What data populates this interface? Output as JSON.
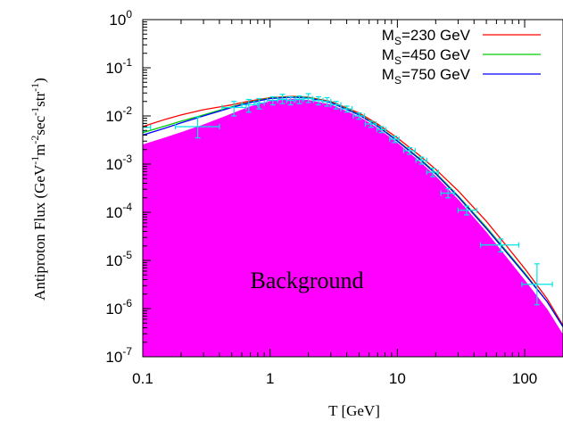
{
  "chart_data": {
    "type": "line",
    "xlabel": "T [GeV]",
    "ylabel": "Antiproton Flux (GeV-1m-2sec-1str-1)",
    "x_scale": "log",
    "y_scale": "log",
    "xlim": [
      0.1,
      200
    ],
    "ylim": [
      1e-07,
      1
    ],
    "grid": false,
    "legend_position": "top-right",
    "x_ticks": [
      {
        "value": 0.1,
        "label": "0.1"
      },
      {
        "value": 1,
        "label": "1"
      },
      {
        "value": 10,
        "label": "10"
      },
      {
        "value": 100,
        "label": "100"
      }
    ],
    "y_ticks": [
      {
        "value": 1,
        "base": "10",
        "exp": "0"
      },
      {
        "value": 0.1,
        "base": "10",
        "exp": "-1"
      },
      {
        "value": 0.01,
        "base": "10",
        "exp": "-2"
      },
      {
        "value": 0.001,
        "base": "10",
        "exp": "-3"
      },
      {
        "value": 0.0001,
        "base": "10",
        "exp": "-4"
      },
      {
        "value": 1e-05,
        "base": "10",
        "exp": "-5"
      },
      {
        "value": 1e-06,
        "base": "10",
        "exp": "-6"
      },
      {
        "value": 1e-07,
        "base": "10",
        "exp": "-7"
      }
    ],
    "background": {
      "label": "Background",
      "color": "#ff00ff",
      "x": [
        0.1,
        0.15,
        0.2,
        0.3,
        0.5,
        0.7,
        1,
        1.5,
        2,
        3,
        5,
        7,
        10,
        15,
        20,
        30,
        50,
        70,
        100,
        150,
        200
      ],
      "y": [
        0.0025,
        0.0035,
        0.0045,
        0.0065,
        0.011,
        0.0155,
        0.02,
        0.022,
        0.021,
        0.017,
        0.0095,
        0.0055,
        0.0027,
        0.0011,
        0.00055,
        0.00018,
        3.8e-05,
        1.25e-05,
        3.8e-06,
        9.5e-07,
        2.8e-07
      ]
    },
    "series": [
      {
        "name": "230 GeV",
        "color": "#ff0000",
        "x": [
          0.1,
          0.15,
          0.2,
          0.3,
          0.5,
          0.7,
          1,
          1.5,
          2,
          3,
          5,
          7,
          10,
          15,
          20,
          30,
          50,
          70,
          100,
          150,
          200
        ],
        "y": [
          0.006,
          0.0085,
          0.0105,
          0.0135,
          0.017,
          0.0205,
          0.024,
          0.0255,
          0.0245,
          0.02,
          0.0115,
          0.0068,
          0.0035,
          0.0015,
          0.00078,
          0.00028,
          6.5e-05,
          2.2e-05,
          6.8e-06,
          1.6e-06,
          4.5e-07
        ]
      },
      {
        "name": "450 GeV",
        "color": "#00cc00",
        "x": [
          0.1,
          0.15,
          0.2,
          0.3,
          0.5,
          0.7,
          1,
          1.5,
          2,
          3,
          5,
          7,
          10,
          15,
          20,
          30,
          50,
          70,
          100,
          150,
          200
        ],
        "y": [
          0.0045,
          0.0062,
          0.0078,
          0.0105,
          0.0155,
          0.0195,
          0.0235,
          0.025,
          0.024,
          0.0193,
          0.0108,
          0.0063,
          0.0031,
          0.0013,
          0.00066,
          0.00022,
          4.9e-05,
          1.7e-05,
          5.5e-06,
          1.4e-06,
          4.2e-07
        ]
      },
      {
        "name": "750 GeV",
        "color": "#0000ff",
        "x": [
          0.1,
          0.15,
          0.2,
          0.3,
          0.5,
          0.7,
          1,
          1.5,
          2,
          3,
          5,
          7,
          10,
          15,
          20,
          30,
          50,
          70,
          100,
          150,
          200
        ],
        "y": [
          0.004,
          0.0056,
          0.0072,
          0.01,
          0.015,
          0.019,
          0.023,
          0.0245,
          0.0235,
          0.019,
          0.0105,
          0.0061,
          0.003,
          0.00125,
          0.00063,
          0.00021,
          4.6e-05,
          1.6e-05,
          5.2e-06,
          1.4e-06,
          4.2e-07
        ]
      }
    ],
    "data_points": {
      "color": "#00e5e5",
      "points": [
        {
          "x": 0.1,
          "y": 0.0058,
          "xerr": [
            0.098,
            0.115
          ],
          "yerr": [
            0.0048,
            0.007
          ]
        },
        {
          "x": 0.27,
          "y": 0.006,
          "xerr": [
            0.18,
            0.4
          ],
          "yerr": [
            0.0035,
            0.0095
          ]
        },
        {
          "x": 0.52,
          "y": 0.015,
          "xerr": [
            0.42,
            0.65
          ],
          "yerr": [
            0.01,
            0.02
          ]
        },
        {
          "x": 0.68,
          "y": 0.017,
          "xerr": [
            0.6,
            0.8
          ],
          "yerr": [
            0.012,
            0.022
          ]
        },
        {
          "x": 0.82,
          "y": 0.0185,
          "xerr": [
            0.75,
            0.9
          ],
          "yerr": [
            0.014,
            0.023
          ]
        },
        {
          "x": 1.05,
          "y": 0.021,
          "xerr": [
            0.95,
            1.15
          ],
          "yerr": [
            0.017,
            0.025
          ]
        },
        {
          "x": 1.25,
          "y": 0.022,
          "xerr": [
            1.15,
            1.35
          ],
          "yerr": [
            0.018,
            0.028
          ]
        },
        {
          "x": 1.45,
          "y": 0.021,
          "xerr": [
            1.35,
            1.55
          ],
          "yerr": [
            0.017,
            0.025
          ]
        },
        {
          "x": 1.7,
          "y": 0.022,
          "xerr": [
            1.6,
            1.8
          ],
          "yerr": [
            0.018,
            0.026
          ]
        },
        {
          "x": 2.0,
          "y": 0.023,
          "xerr": [
            1.85,
            2.15
          ],
          "yerr": [
            0.019,
            0.029
          ]
        },
        {
          "x": 2.4,
          "y": 0.021,
          "xerr": [
            2.2,
            2.6
          ],
          "yerr": [
            0.017,
            0.025
          ]
        },
        {
          "x": 2.8,
          "y": 0.02,
          "xerr": [
            2.6,
            3.0
          ],
          "yerr": [
            0.016,
            0.024
          ]
        },
        {
          "x": 3.3,
          "y": 0.017,
          "xerr": [
            3.0,
            3.6
          ],
          "yerr": [
            0.014,
            0.02
          ]
        },
        {
          "x": 4.0,
          "y": 0.014,
          "xerr": [
            3.6,
            4.4
          ],
          "yerr": [
            0.012,
            0.016
          ]
        },
        {
          "x": 5.0,
          "y": 0.01,
          "xerr": [
            4.5,
            5.5
          ],
          "yerr": [
            0.0085,
            0.0115
          ]
        },
        {
          "x": 6.2,
          "y": 0.0068,
          "xerr": [
            5.6,
            6.8
          ],
          "yerr": [
            0.0058,
            0.0078
          ]
        },
        {
          "x": 7.5,
          "y": 0.0052,
          "xerr": [
            6.9,
            8.1
          ],
          "yerr": [
            0.0045,
            0.006
          ]
        },
        {
          "x": 9.5,
          "y": 0.0033,
          "xerr": [
            8.7,
            10.3
          ],
          "yerr": [
            0.0028,
            0.0038
          ]
        },
        {
          "x": 12.5,
          "y": 0.0019,
          "xerr": [
            11.2,
            13.8
          ],
          "yerr": [
            0.0016,
            0.0022
          ]
        },
        {
          "x": 15.5,
          "y": 0.0012,
          "xerr": [
            14.0,
            17.0
          ],
          "yerr": [
            0.001,
            0.0014
          ]
        },
        {
          "x": 19.0,
          "y": 0.00068,
          "xerr": [
            17.0,
            21.0
          ],
          "yerr": [
            0.00055,
            0.00082
          ]
        },
        {
          "x": 25.0,
          "y": 0.00025,
          "xerr": [
            22.0,
            28.0
          ],
          "yerr": [
            0.0002,
            0.00031
          ]
        },
        {
          "x": 35.0,
          "y": 0.00011,
          "xerr": [
            30.0,
            42.0
          ],
          "yerr": [
            8.8e-05,
            0.000135
          ]
        },
        {
          "x": 65.0,
          "y": 2.1e-05,
          "xerr": [
            45.0,
            90.0
          ],
          "yerr": [
            1.5e-05,
            2.8e-05
          ]
        },
        {
          "x": 125.0,
          "y": 3.2e-06,
          "xerr": [
            95.0,
            165.0
          ],
          "yerr": [
            1.2e-06,
            8.5e-06
          ]
        }
      ]
    }
  }
}
